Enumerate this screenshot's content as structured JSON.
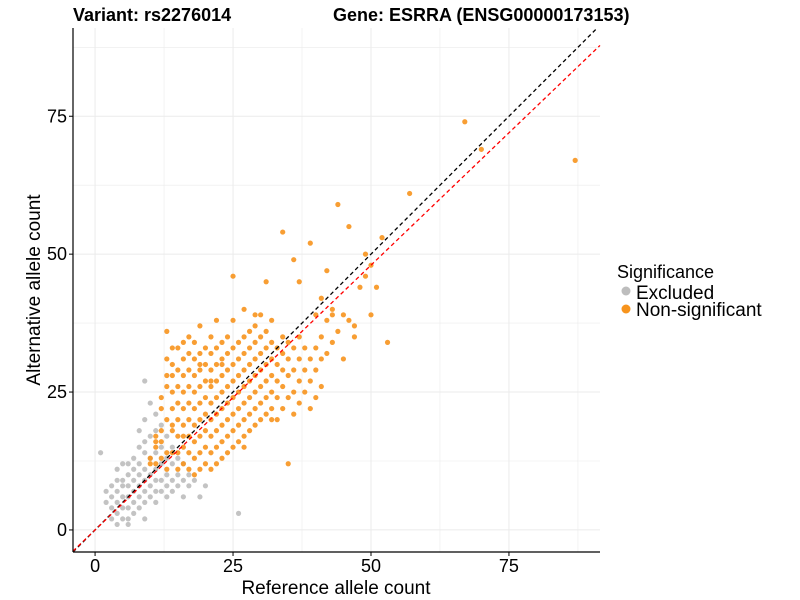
{
  "chart_data": {
    "type": "scatter",
    "title_left": "Variant: rs2276014",
    "title_right": "Gene: ESRRA (ENSG00000173153)",
    "xlabel": "Reference allele count",
    "ylabel": "Alternative allele count",
    "xlim": [
      -4,
      91.5
    ],
    "ylim": [
      -4,
      91
    ],
    "xticks": [
      0,
      25,
      50,
      75
    ],
    "yticks": [
      0,
      25,
      50,
      75
    ],
    "grid": true,
    "legend": {
      "title": "Significance",
      "position": "right",
      "entries": [
        "Excluded",
        "Non-significant"
      ]
    },
    "colors": {
      "Excluded": "#bdbdbd",
      "Non-significant": "#f7941d",
      "identity_line": "#000000",
      "fit_line": "#ff0000",
      "grid": "#ebebeb",
      "axis": "#000000"
    },
    "reference_lines": [
      {
        "name": "identity",
        "slope": 1.0,
        "intercept": 0.0,
        "style": "dashed",
        "color": "#000000"
      },
      {
        "name": "fit",
        "slope": 0.96,
        "intercept": 0.0,
        "style": "dashed",
        "color": "#ff0000"
      }
    ],
    "series": [
      {
        "name": "Excluded",
        "color": "#bdbdbd",
        "points": [
          [
            1,
            14
          ],
          [
            2,
            5
          ],
          [
            2,
            7
          ],
          [
            3,
            8
          ],
          [
            3,
            6
          ],
          [
            3,
            2
          ],
          [
            4,
            11
          ],
          [
            4,
            9
          ],
          [
            4,
            7
          ],
          [
            4,
            5
          ],
          [
            4,
            3
          ],
          [
            4,
            1
          ],
          [
            5,
            12
          ],
          [
            5,
            9
          ],
          [
            5,
            8
          ],
          [
            5,
            6
          ],
          [
            5,
            4
          ],
          [
            5,
            2
          ],
          [
            6,
            10
          ],
          [
            6,
            8
          ],
          [
            6,
            6
          ],
          [
            6,
            4
          ],
          [
            6,
            2
          ],
          [
            6,
            1
          ],
          [
            7,
            11
          ],
          [
            7,
            9
          ],
          [
            7,
            7
          ],
          [
            7,
            5
          ],
          [
            7,
            3
          ],
          [
            7,
            13
          ],
          [
            8,
            18
          ],
          [
            8,
            15
          ],
          [
            8,
            12
          ],
          [
            8,
            10
          ],
          [
            8,
            8
          ],
          [
            8,
            6
          ],
          [
            8,
            4
          ],
          [
            9,
            27
          ],
          [
            9,
            20
          ],
          [
            9,
            16
          ],
          [
            9,
            14
          ],
          [
            9,
            11
          ],
          [
            9,
            9
          ],
          [
            9,
            7
          ],
          [
            9,
            5
          ],
          [
            10,
            23
          ],
          [
            10,
            17
          ],
          [
            10,
            13
          ],
          [
            10,
            10
          ],
          [
            10,
            8
          ],
          [
            10,
            6
          ],
          [
            11,
            21
          ],
          [
            11,
            18
          ],
          [
            11,
            14
          ],
          [
            11,
            11
          ],
          [
            11,
            9
          ],
          [
            11,
            7
          ],
          [
            11,
            5
          ],
          [
            12,
            19
          ],
          [
            12,
            15
          ],
          [
            12,
            12
          ],
          [
            12,
            9
          ],
          [
            12,
            7
          ],
          [
            13,
            17
          ],
          [
            13,
            13
          ],
          [
            13,
            10
          ],
          [
            13,
            8
          ],
          [
            13,
            6
          ],
          [
            14,
            15
          ],
          [
            14,
            12
          ],
          [
            14,
            9
          ],
          [
            14,
            7
          ],
          [
            15,
            13
          ],
          [
            15,
            10
          ],
          [
            15,
            8
          ],
          [
            16,
            12
          ],
          [
            16,
            9
          ],
          [
            16,
            6
          ],
          [
            17,
            10
          ],
          [
            17,
            8
          ],
          [
            18,
            9
          ],
          [
            19,
            6
          ],
          [
            20,
            8
          ],
          [
            26,
            3
          ],
          [
            9,
            2
          ],
          [
            3,
            4
          ],
          [
            6,
            12
          ]
        ]
      },
      {
        "name": "Non-significant",
        "color": "#f7941d",
        "points": [
          [
            10,
            13
          ],
          [
            10,
            12
          ],
          [
            11,
            12
          ],
          [
            11,
            15
          ],
          [
            11,
            17
          ],
          [
            12,
            16
          ],
          [
            12,
            18
          ],
          [
            12,
            13
          ],
          [
            12,
            22
          ],
          [
            12,
            24
          ],
          [
            13,
            20
          ],
          [
            13,
            14
          ],
          [
            13,
            26
          ],
          [
            13,
            28
          ],
          [
            13,
            31
          ],
          [
            13,
            36
          ],
          [
            14,
            14
          ],
          [
            14,
            18
          ],
          [
            14,
            22
          ],
          [
            14,
            25
          ],
          [
            14,
            28
          ],
          [
            14,
            30
          ],
          [
            14,
            33
          ],
          [
            15,
            11
          ],
          [
            15,
            14
          ],
          [
            15,
            17
          ],
          [
            15,
            20
          ],
          [
            15,
            23
          ],
          [
            15,
            26
          ],
          [
            15,
            29
          ],
          [
            15,
            33
          ],
          [
            16,
            12
          ],
          [
            16,
            15
          ],
          [
            16,
            19
          ],
          [
            16,
            22
          ],
          [
            16,
            25
          ],
          [
            16,
            28
          ],
          [
            16,
            31
          ],
          [
            16,
            34
          ],
          [
            17,
            11
          ],
          [
            17,
            14
          ],
          [
            17,
            17
          ],
          [
            17,
            20
          ],
          [
            17,
            23
          ],
          [
            17,
            26
          ],
          [
            17,
            29
          ],
          [
            17,
            32
          ],
          [
            17,
            35
          ],
          [
            18,
            10
          ],
          [
            18,
            13
          ],
          [
            18,
            16
          ],
          [
            18,
            19
          ],
          [
            18,
            22
          ],
          [
            18,
            25
          ],
          [
            18,
            28
          ],
          [
            18,
            31
          ],
          [
            18,
            34
          ],
          [
            19,
            11
          ],
          [
            19,
            14
          ],
          [
            19,
            17
          ],
          [
            19,
            20
          ],
          [
            19,
            23
          ],
          [
            19,
            26
          ],
          [
            19,
            29
          ],
          [
            19,
            32
          ],
          [
            19,
            37
          ],
          [
            20,
            12
          ],
          [
            20,
            15
          ],
          [
            20,
            18
          ],
          [
            20,
            21
          ],
          [
            20,
            24
          ],
          [
            20,
            27
          ],
          [
            20,
            30
          ],
          [
            20,
            33
          ],
          [
            21,
            11
          ],
          [
            21,
            14
          ],
          [
            21,
            17
          ],
          [
            21,
            20
          ],
          [
            21,
            23
          ],
          [
            21,
            26
          ],
          [
            21,
            29
          ],
          [
            21,
            32
          ],
          [
            21,
            35
          ],
          [
            22,
            12
          ],
          [
            22,
            15
          ],
          [
            22,
            18
          ],
          [
            22,
            21
          ],
          [
            22,
            24
          ],
          [
            22,
            27
          ],
          [
            22,
            30
          ],
          [
            22,
            33
          ],
          [
            22,
            38
          ],
          [
            23,
            13
          ],
          [
            23,
            16
          ],
          [
            23,
            19
          ],
          [
            23,
            22
          ],
          [
            23,
            25
          ],
          [
            23,
            28
          ],
          [
            23,
            31
          ],
          [
            23,
            34
          ],
          [
            24,
            14
          ],
          [
            24,
            17
          ],
          [
            24,
            20
          ],
          [
            24,
            23
          ],
          [
            24,
            26
          ],
          [
            24,
            29
          ],
          [
            24,
            32
          ],
          [
            24,
            35
          ],
          [
            25,
            15
          ],
          [
            25,
            18
          ],
          [
            25,
            21
          ],
          [
            25,
            24
          ],
          [
            25,
            27
          ],
          [
            25,
            30
          ],
          [
            25,
            33
          ],
          [
            25,
            38
          ],
          [
            26,
            16
          ],
          [
            26,
            19
          ],
          [
            26,
            22
          ],
          [
            26,
            25
          ],
          [
            26,
            28
          ],
          [
            26,
            31
          ],
          [
            26,
            34
          ],
          [
            27,
            17
          ],
          [
            27,
            20
          ],
          [
            27,
            23
          ],
          [
            27,
            26
          ],
          [
            27,
            29
          ],
          [
            27,
            32
          ],
          [
            27,
            35
          ],
          [
            27,
            40
          ],
          [
            28,
            18
          ],
          [
            28,
            21
          ],
          [
            28,
            24
          ],
          [
            28,
            27
          ],
          [
            28,
            30
          ],
          [
            28,
            33
          ],
          [
            28,
            36
          ],
          [
            29,
            19
          ],
          [
            29,
            22
          ],
          [
            29,
            25
          ],
          [
            29,
            28
          ],
          [
            29,
            31
          ],
          [
            29,
            34
          ],
          [
            29,
            37
          ],
          [
            30,
            20
          ],
          [
            30,
            23
          ],
          [
            30,
            26
          ],
          [
            30,
            29
          ],
          [
            30,
            32
          ],
          [
            30,
            35
          ],
          [
            30,
            39
          ],
          [
            31,
            21
          ],
          [
            31,
            24
          ],
          [
            31,
            27
          ],
          [
            31,
            30
          ],
          [
            31,
            33
          ],
          [
            31,
            36
          ],
          [
            32,
            22
          ],
          [
            32,
            25
          ],
          [
            32,
            28
          ],
          [
            32,
            31
          ],
          [
            32,
            34
          ],
          [
            32,
            38
          ],
          [
            33,
            20
          ],
          [
            33,
            24
          ],
          [
            33,
            27
          ],
          [
            33,
            30
          ],
          [
            33,
            33
          ],
          [
            34,
            22
          ],
          [
            34,
            26
          ],
          [
            34,
            29
          ],
          [
            34,
            32
          ],
          [
            34,
            35
          ],
          [
            35,
            24
          ],
          [
            35,
            28
          ],
          [
            35,
            31
          ],
          [
            35,
            34
          ],
          [
            36,
            21
          ],
          [
            36,
            25
          ],
          [
            36,
            29
          ],
          [
            36,
            33
          ],
          [
            37,
            23
          ],
          [
            37,
            27
          ],
          [
            37,
            31
          ],
          [
            37,
            35
          ],
          [
            38,
            25
          ],
          [
            38,
            29
          ],
          [
            38,
            33
          ],
          [
            39,
            22
          ],
          [
            39,
            27
          ],
          [
            39,
            31
          ],
          [
            40,
            24
          ],
          [
            40,
            29
          ],
          [
            40,
            33
          ],
          [
            40,
            39
          ],
          [
            41,
            26
          ],
          [
            41,
            31
          ],
          [
            41,
            35
          ],
          [
            42,
            32
          ],
          [
            42,
            38
          ],
          [
            43,
            34
          ],
          [
            43,
            40
          ],
          [
            44,
            36
          ],
          [
            45,
            31
          ],
          [
            45,
            39
          ],
          [
            46,
            38
          ],
          [
            47,
            37
          ],
          [
            48,
            44
          ],
          [
            49,
            46
          ],
          [
            50,
            48
          ],
          [
            50,
            39
          ],
          [
            51,
            44
          ],
          [
            25,
            46
          ],
          [
            29,
            39
          ],
          [
            31,
            45
          ],
          [
            34,
            54
          ],
          [
            36,
            49
          ],
          [
            37,
            45
          ],
          [
            39,
            52
          ],
          [
            41,
            42
          ],
          [
            42,
            47
          ],
          [
            43,
            39
          ],
          [
            44,
            59
          ],
          [
            46,
            55
          ],
          [
            47,
            35
          ],
          [
            49,
            50
          ],
          [
            52,
            53
          ],
          [
            57,
            61
          ],
          [
            53,
            34
          ],
          [
            67,
            74
          ],
          [
            70,
            69
          ],
          [
            87,
            67
          ],
          [
            21,
            27
          ],
          [
            19,
            30
          ],
          [
            23,
            30
          ],
          [
            27,
            15
          ],
          [
            32,
            20
          ],
          [
            35,
            12
          ],
          [
            14,
            19
          ],
          [
            11,
            16
          ],
          [
            13,
            11
          ],
          [
            16,
            17
          ]
        ]
      }
    ]
  }
}
